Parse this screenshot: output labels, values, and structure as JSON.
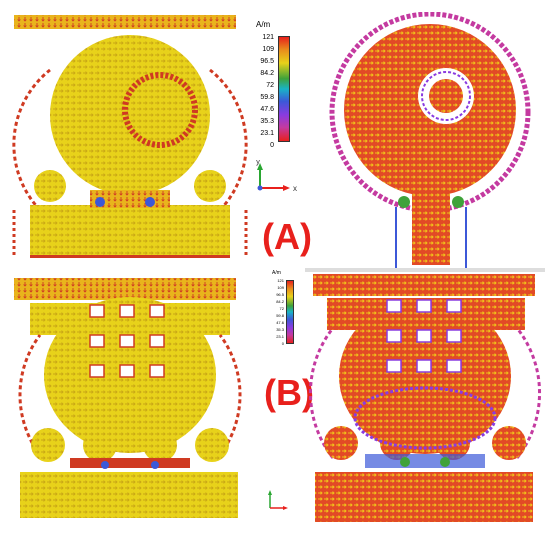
{
  "labels": {
    "a": "(A)",
    "b": "(B)"
  },
  "legend_top": {
    "unit": "A/m",
    "ticks": [
      "121",
      "109",
      "96.5",
      "84.2",
      "72",
      "59.8",
      "47.6",
      "35.3",
      "23.1",
      "0"
    ]
  },
  "legend_bottom": {
    "unit": "A/m",
    "ticks": [
      "121",
      "109",
      "96.5",
      "84.2",
      "72",
      "59.8",
      "47.6",
      "35.3",
      "23.1",
      "0"
    ]
  },
  "axes": {
    "y": "y",
    "x": "x"
  },
  "colors": {
    "field_yellow": "#e8d21a",
    "field_orange": "#e9a41c",
    "field_red": "#cf3a22",
    "field_magenta": "#c43aa0",
    "field_purple": "#8a3be0",
    "field_blue": "#3c58d8",
    "field_green": "#3fa23a",
    "label_red": "#e8201c"
  }
}
